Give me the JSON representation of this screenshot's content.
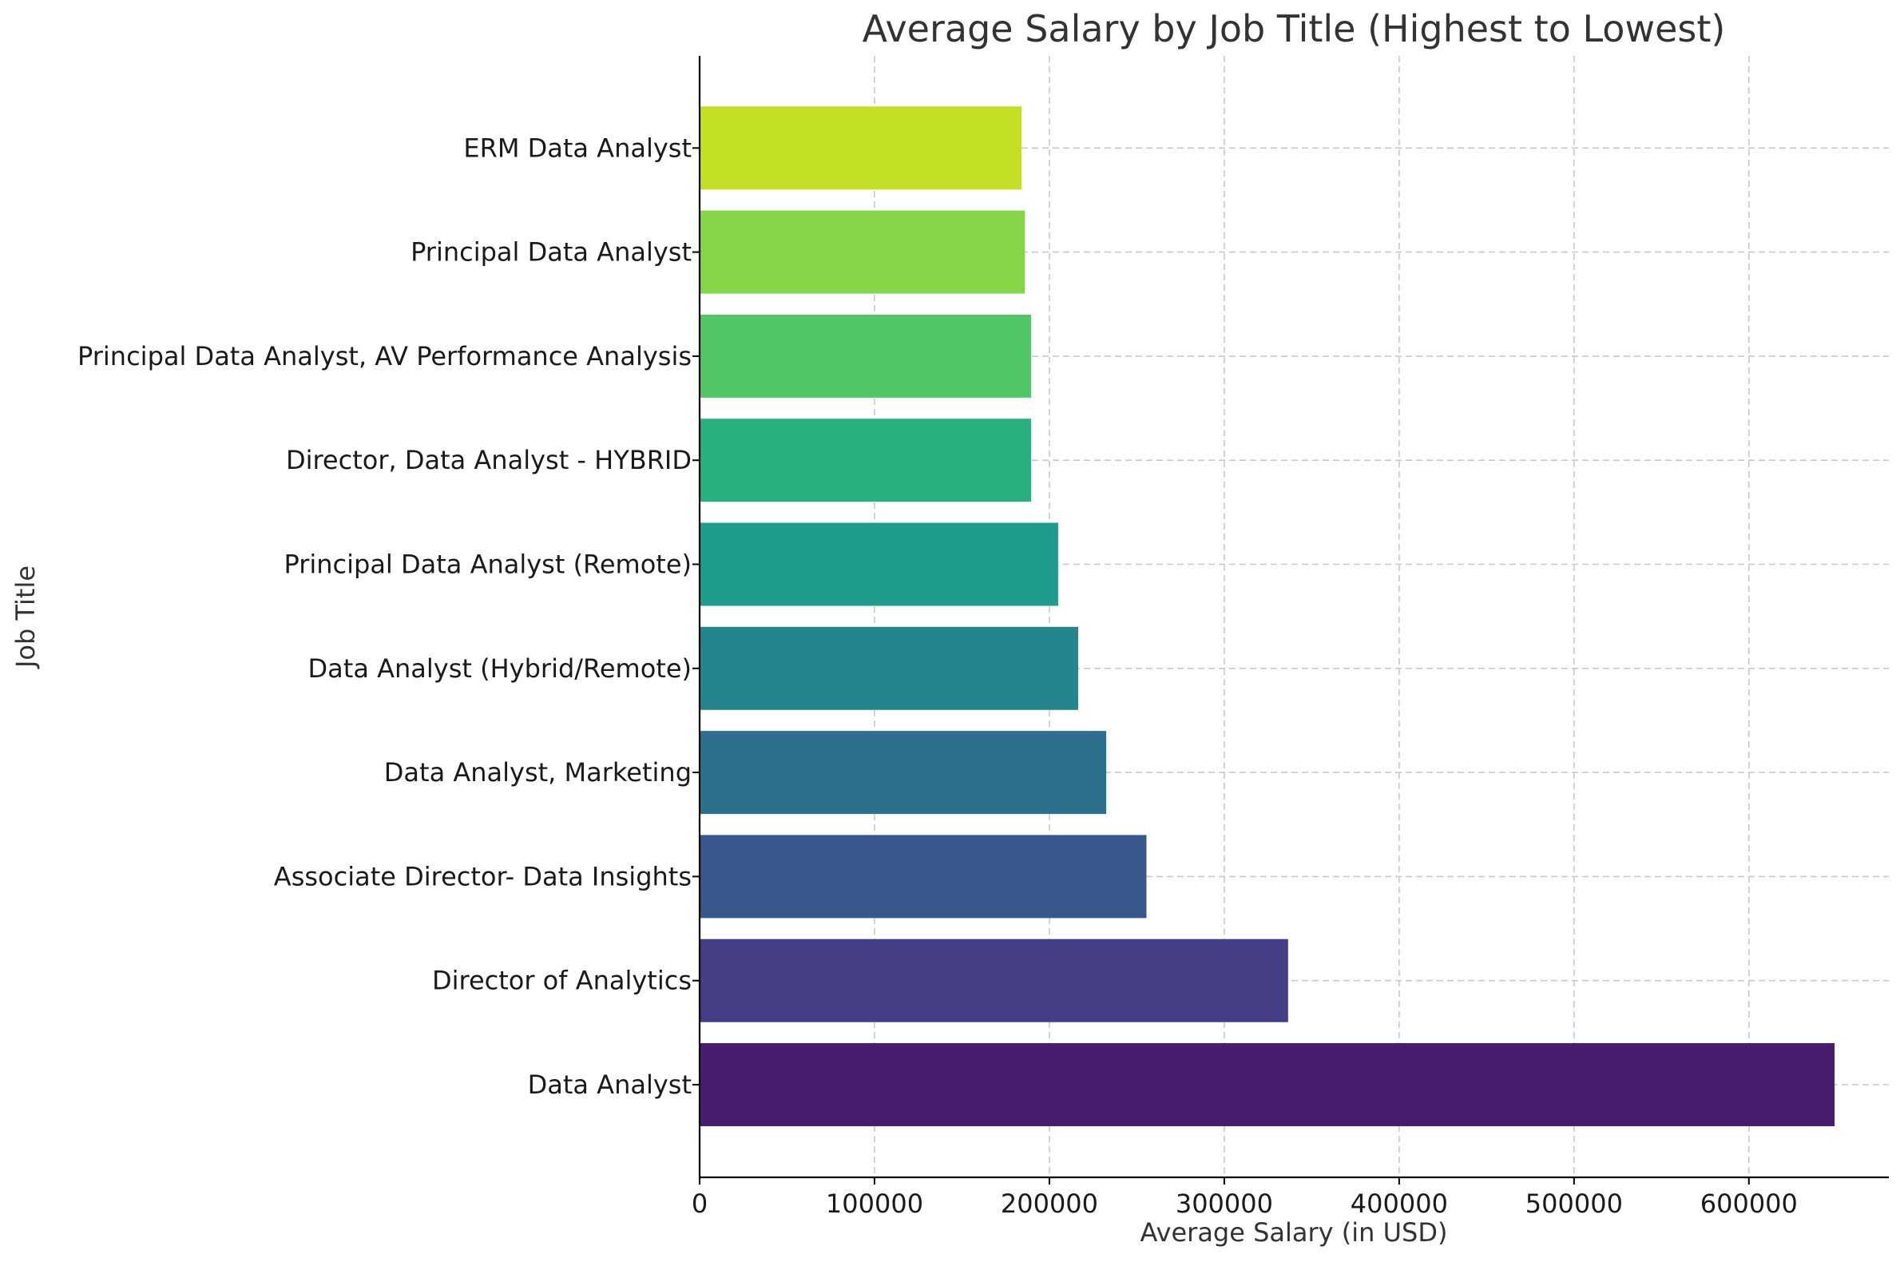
{
  "chart_data": {
    "type": "bar",
    "orientation": "horizontal",
    "title": "Average Salary by Job Title (Highest to Lowest)",
    "xlabel": "Average Salary (in USD)",
    "ylabel": "Job Title",
    "categories": [
      "Data Analyst",
      "Director of Analytics",
      "Associate Director- Data Insights",
      "Data Analyst, Marketing",
      "Data Analyst (Hybrid/Remote)",
      "Principal Data Analyst (Remote)",
      "Director, Data Analyst - HYBRID",
      "Principal Data Analyst, AV Performance Analysis",
      "Principal Data Analyst",
      "ERM Data Analyst"
    ],
    "values": [
      649000,
      336500,
      255500,
      232500,
      216500,
      205000,
      189500,
      189500,
      186000,
      184000
    ],
    "colors": [
      "#481c6e",
      "#433e85",
      "#38588c",
      "#2d708e",
      "#25858e",
      "#1e9b8a",
      "#2ab07f",
      "#52c569",
      "#86d549",
      "#c2df23"
    ],
    "xlim": [
      0,
      680000
    ],
    "xticks": [
      0,
      100000,
      200000,
      300000,
      400000,
      500000,
      600000
    ],
    "xtick_labels": [
      "0",
      "100000",
      "200000",
      "300000",
      "400000",
      "500000",
      "600000"
    ],
    "grid": true,
    "legend": "none"
  }
}
